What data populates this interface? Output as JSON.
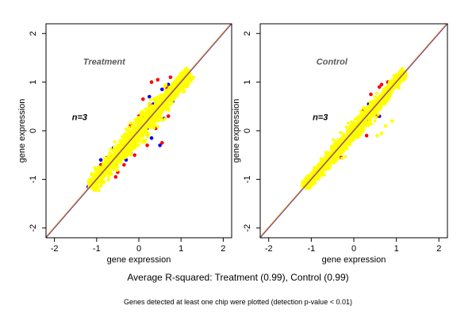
{
  "figure": {
    "caption": "Average R-squared: Treatment (0.99), Control (0.99)",
    "note": "Genes detected at least one chip were plotted (detection p-value < 0.01)"
  },
  "colors": {
    "point_main": "#ffff00",
    "point_blue": "#0000ff",
    "point_red": "#ff0000",
    "line_diag_1": "#3333cc",
    "line_diag_2": "#ff8800"
  },
  "chart_data": [
    {
      "type": "scatter",
      "title": "Treatment",
      "annotation": "n=3",
      "xlabel": "gene expression",
      "ylabel": "gene expression",
      "xlim": [
        -2.2,
        2.2
      ],
      "ylim": [
        -2.2,
        2.2
      ],
      "xticks": [
        -2,
        -1,
        0,
        1,
        2
      ],
      "yticks": [
        -2,
        -1,
        0,
        1,
        2
      ],
      "reference_lines": [
        {
          "slope": 1,
          "intercept": 0,
          "color": "#3333cc"
        },
        {
          "slope": 1,
          "intercept": 0.02,
          "color": "#ff8800"
        }
      ],
      "series": [
        {
          "color": "#0000ff",
          "points": [
            [
              -1.2,
              -1.15
            ],
            [
              -0.9,
              -0.6
            ],
            [
              -0.7,
              -0.85
            ],
            [
              -0.4,
              -0.25
            ],
            [
              -0.2,
              -0.45
            ],
            [
              0.1,
              0.3
            ],
            [
              0.3,
              -0.15
            ],
            [
              0.35,
              0.55
            ],
            [
              0.55,
              0.85
            ],
            [
              0.7,
              0.95
            ],
            [
              0.5,
              -0.3
            ],
            [
              0.8,
              0.6
            ],
            [
              -0.6,
              -0.35
            ],
            [
              -1.0,
              -1.05
            ],
            [
              0.2,
              0.05
            ],
            [
              0.45,
              0.4
            ],
            [
              0.9,
              1.0
            ],
            [
              -0.3,
              -0.6
            ],
            [
              0.6,
              0.25
            ],
            [
              0.25,
              0.7
            ]
          ]
        },
        {
          "color": "#ff0000",
          "points": [
            [
              -1.05,
              -0.95
            ],
            [
              -0.75,
              -0.55
            ],
            [
              -0.5,
              -0.85
            ],
            [
              -0.3,
              -0.15
            ],
            [
              -0.1,
              -0.5
            ],
            [
              0.0,
              0.3
            ],
            [
              0.2,
              -0.3
            ],
            [
              0.25,
              0.55
            ],
            [
              0.3,
              1.0
            ],
            [
              0.45,
              1.05
            ],
            [
              0.6,
              0.7
            ],
            [
              0.7,
              0.3
            ],
            [
              0.85,
              0.95
            ],
            [
              0.55,
              -0.25
            ],
            [
              -0.55,
              -0.95
            ],
            [
              -0.2,
              0.1
            ],
            [
              0.1,
              0.65
            ],
            [
              0.4,
              0.05
            ],
            [
              -0.9,
              -0.7
            ],
            [
              0.75,
              1.1
            ],
            [
              -0.35,
              -0.7
            ],
            [
              0.65,
              0.9
            ]
          ]
        },
        {
          "color": "#ffff00",
          "points": []
        }
      ]
    },
    {
      "type": "scatter",
      "title": "Control",
      "annotation": "n=3",
      "xlabel": "gene expression",
      "ylabel": "gene expression",
      "xlim": [
        -2.2,
        2.2
      ],
      "ylim": [
        -2.2,
        2.2
      ],
      "xticks": [
        -2,
        -1,
        0,
        1,
        2
      ],
      "yticks": [
        -2,
        -1,
        0,
        1,
        2
      ],
      "reference_lines": [
        {
          "slope": 1,
          "intercept": 0,
          "color": "#3333cc"
        },
        {
          "slope": 1,
          "intercept": 0.02,
          "color": "#ff8800"
        }
      ],
      "series": [
        {
          "color": "#0000ff",
          "points": [
            [
              -1.15,
              -1.1
            ],
            [
              -0.8,
              -0.7
            ],
            [
              -0.5,
              -0.45
            ],
            [
              -0.2,
              -0.3
            ],
            [
              0.1,
              0.05
            ],
            [
              0.3,
              0.2
            ],
            [
              0.5,
              0.45
            ],
            [
              0.7,
              0.6
            ],
            [
              0.9,
              0.85
            ],
            [
              0.35,
              0.55
            ],
            [
              -0.6,
              -0.75
            ],
            [
              0.6,
              0.3
            ]
          ]
        },
        {
          "color": "#ff0000",
          "points": [
            [
              -0.7,
              -0.6
            ],
            [
              -0.4,
              -0.3
            ],
            [
              -0.1,
              0.0
            ],
            [
              0.2,
              0.4
            ],
            [
              0.4,
              0.75
            ],
            [
              0.6,
              0.9
            ],
            [
              0.8,
              1.0
            ],
            [
              0.55,
              0.3
            ],
            [
              0.3,
              -0.1
            ],
            [
              -0.3,
              -0.55
            ],
            [
              0.75,
              0.7
            ],
            [
              0.65,
              0.95
            ]
          ]
        },
        {
          "color": "#ffff00",
          "points": [
            [
              0.65,
              -0.05
            ],
            [
              0.75,
              0.1
            ],
            [
              0.55,
              -0.1
            ],
            [
              0.9,
              0.2
            ]
          ]
        }
      ]
    }
  ]
}
